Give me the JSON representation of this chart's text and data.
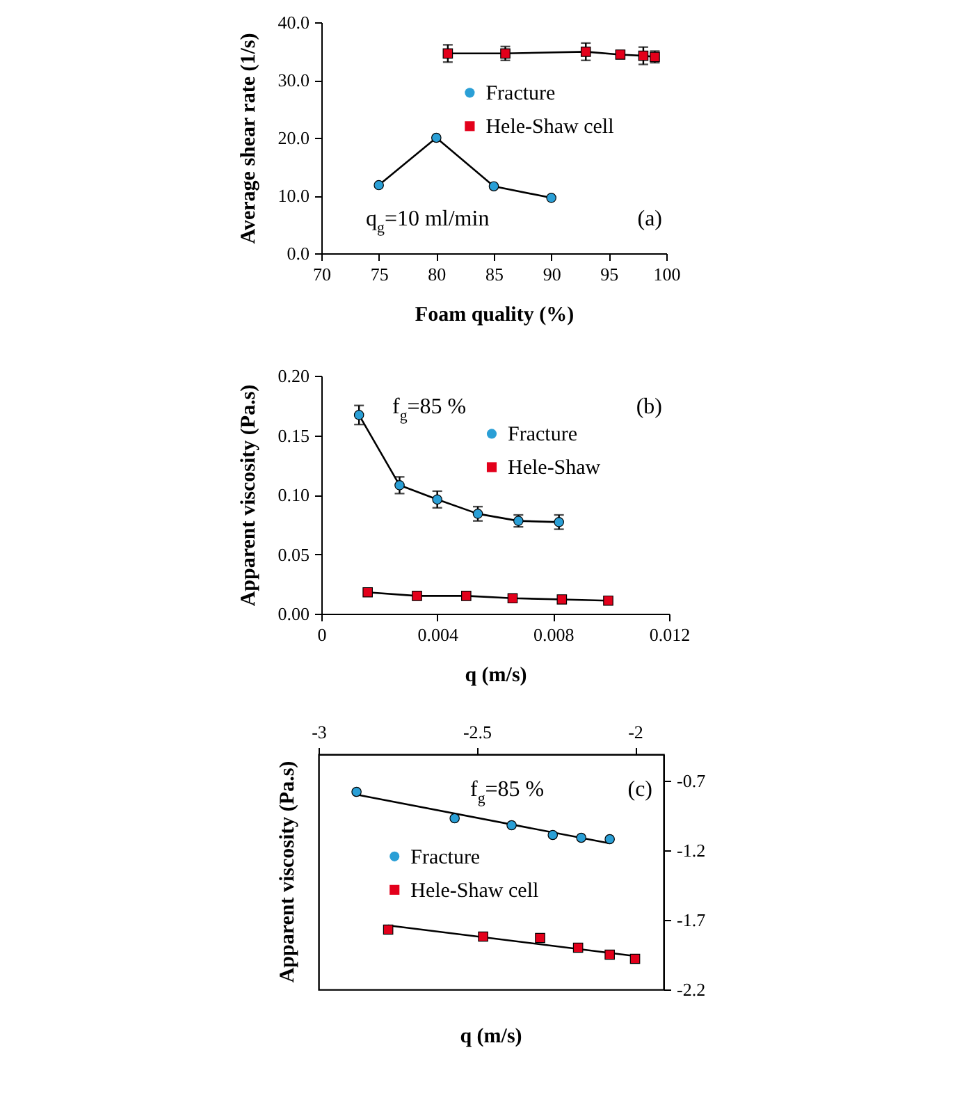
{
  "chart_data": [
    {
      "type": "line",
      "xlabel": "Foam quality (%)",
      "ylabel": "Average shear rate (1/s)",
      "xlim": [
        70,
        100
      ],
      "xticks": [
        70,
        75,
        80,
        85,
        90,
        95,
        100
      ],
      "ylim": [
        0,
        40
      ],
      "yticks": [
        {
          "value": 0,
          "label": "0.0"
        },
        {
          "value": 10,
          "label": "10.0"
        },
        {
          "value": 20,
          "label": "20.0"
        },
        {
          "value": 30,
          "label": "30.0"
        },
        {
          "value": 40,
          "label": "40.0"
        }
      ],
      "legend": "top",
      "annotations": [
        "q$_{g}$=10 ml/min",
        "(a)"
      ],
      "series": [
        {
          "name": "Fracture",
          "color": "#2a9fd6",
          "marker": "circle",
          "x": [
            75,
            80,
            85,
            90
          ],
          "values": [
            11.8,
            20.0,
            11.6,
            9.6
          ]
        },
        {
          "name": "Hele-Shaw cell",
          "color": "#e3001b",
          "marker": "square",
          "x": [
            81,
            86,
            93,
            96,
            98,
            99
          ],
          "values": [
            34.6,
            34.6,
            34.9,
            34.4,
            34.2,
            34.0
          ],
          "errors": [
            1.5,
            1.2,
            1.5,
            null,
            1.5,
            1.0
          ]
        }
      ]
    },
    {
      "type": "line",
      "xlabel": "q (m/s)",
      "ylabel": "Apparent viscosity (Pa.s)",
      "xlim": [
        0,
        0.012
      ],
      "xticks": [
        0,
        0.004,
        0.008,
        0.012
      ],
      "ylim": [
        0,
        0.2
      ],
      "yticks": [
        {
          "value": 0,
          "label": "0.00"
        },
        {
          "value": 0.05,
          "label": "0.05"
        },
        {
          "value": 0.1,
          "label": "0.10"
        },
        {
          "value": 0.15,
          "label": "0.15"
        },
        {
          "value": 0.2,
          "label": "0.20"
        }
      ],
      "legend": "top right",
      "annotations": [
        "f$_{g}$=85 %",
        "(b)"
      ],
      "series": [
        {
          "name": "Fracture",
          "color": "#2a9fd6",
          "marker": "circle",
          "x": [
            0.0013,
            0.0027,
            0.004,
            0.0054,
            0.0068,
            0.0082
          ],
          "values": [
            0.167,
            0.108,
            0.096,
            0.084,
            0.078,
            0.077
          ],
          "errors": [
            0.008,
            0.007,
            0.007,
            0.006,
            0.005,
            0.006
          ]
        },
        {
          "name": "Hele-Shaw",
          "color": "#e3001b",
          "marker": "square",
          "x": [
            0.0016,
            0.0033,
            0.005,
            0.0066,
            0.0083,
            0.0099
          ],
          "values": [
            0.018,
            0.015,
            0.015,
            0.013,
            0.012,
            0.011
          ]
        }
      ]
    },
    {
      "type": "scatter",
      "xlabel": "q (m/s)",
      "ylabel": "Apparent viscosity (Pa.s)",
      "xlim": [
        -3,
        -1.91
      ],
      "xticks": [
        -3,
        -2.5,
        -2
      ],
      "ylim": [
        -2.2,
        -0.51
      ],
      "yticks": [
        -2.2,
        -1.7,
        -1.2,
        -0.7
      ],
      "legend": "left",
      "annotations": [
        "f$_{g}$=85 %",
        "(c)"
      ],
      "series": [
        {
          "name": "Fracture",
          "color": "#2a9fd6",
          "marker": "circle",
          "x": [
            -2.88,
            -2.57,
            -2.39,
            -2.26,
            -2.17,
            -2.08
          ],
          "values": [
            -0.78,
            -0.97,
            -1.02,
            -1.09,
            -1.11,
            -1.12
          ]
        },
        {
          "name": "Hele-Shaw cell",
          "color": "#e3001b",
          "marker": "square",
          "x": [
            -2.78,
            -2.48,
            -2.3,
            -2.18,
            -2.08,
            -2.0
          ],
          "values": [
            -1.77,
            -1.82,
            -1.83,
            -1.9,
            -1.95,
            -1.98
          ]
        },
        {
          "type": "line",
          "color": "#000000",
          "x": [
            -2.88,
            -2.08
          ],
          "values": [
            -0.8,
            -1.15
          ]
        },
        {
          "type": "line",
          "color": "#000000",
          "x": [
            -2.78,
            -2.0
          ],
          "values": [
            -1.74,
            -1.96
          ]
        }
      ]
    }
  ]
}
